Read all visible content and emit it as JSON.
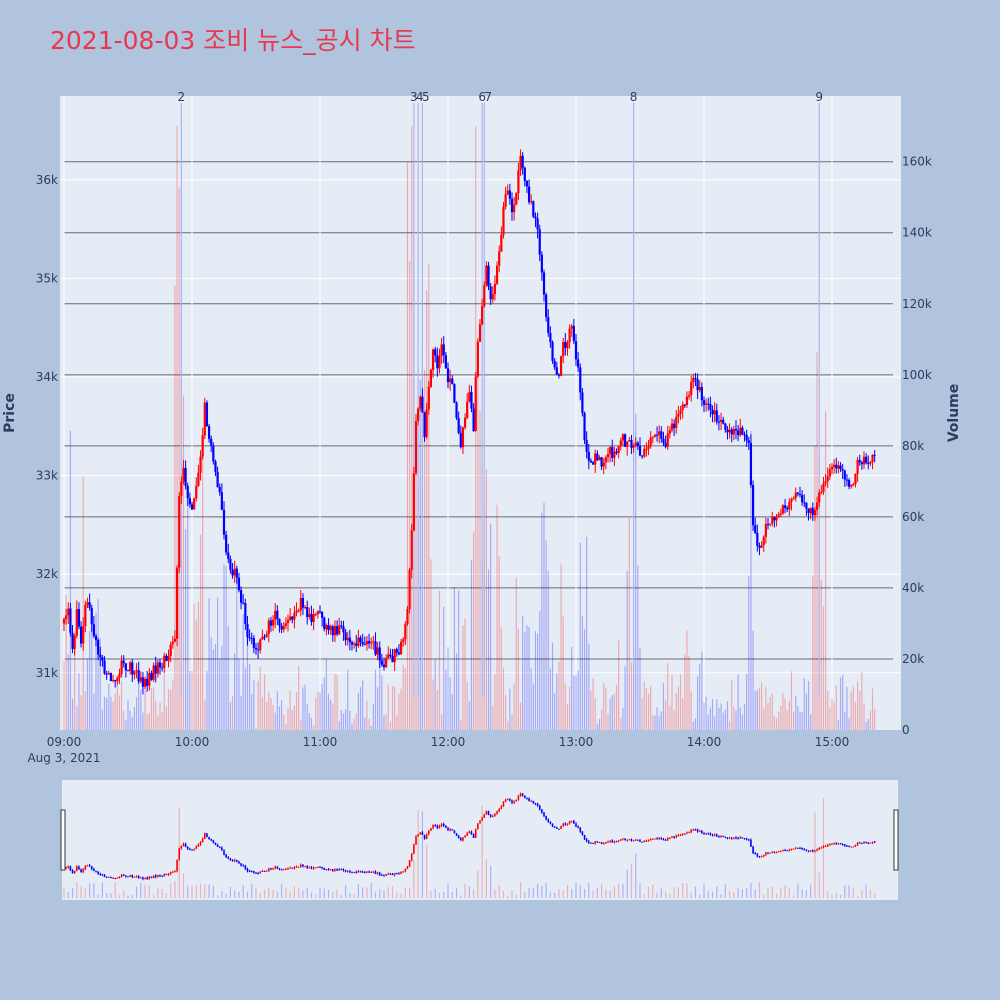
{
  "title": "2021-08-03 조비 뉴스_공시 차트",
  "chart_data": {
    "type": "candlestick",
    "title": "2021-08-03 조비 뉴스_공시 차트",
    "ylabel": "Price",
    "y2label": "Volume",
    "xdate_label": "Aug 3, 2021",
    "x_ticks": [
      "09:00",
      "10:00",
      "11:00",
      "12:00",
      "13:00",
      "14:00",
      "15:00"
    ],
    "x_range": [
      "09:00",
      "15:30"
    ],
    "y_ticks": [
      "31k",
      "32k",
      "33k",
      "34k",
      "35k",
      "36k"
    ],
    "y_tick_values": [
      31000,
      32000,
      33000,
      34000,
      35000,
      36000
    ],
    "ylim": [
      30420,
      36850
    ],
    "y2_ticks": [
      "0",
      "20k",
      "40k",
      "60k",
      "80k",
      "100k",
      "120k",
      "140k",
      "160k"
    ],
    "y2_tick_values": [
      0,
      20000,
      40000,
      60000,
      80000,
      100000,
      120000,
      140000,
      160000
    ],
    "y2lim": [
      0,
      178500
    ],
    "colors": {
      "up": "#ff0000",
      "down": "#0000ff",
      "news_line": "#aab4f0"
    },
    "price_path": [
      [
        "09:00",
        31500
      ],
      [
        "09:02",
        31700
      ],
      [
        "09:04",
        31200
      ],
      [
        "09:06",
        31600
      ],
      [
        "09:08",
        31300
      ],
      [
        "09:10",
        31750
      ],
      [
        "09:12",
        31600
      ],
      [
        "09:14",
        31400
      ],
      [
        "09:17",
        31100
      ],
      [
        "09:20",
        31000
      ],
      [
        "09:22",
        30900
      ],
      [
        "09:25",
        31000
      ],
      [
        "09:28",
        31100
      ],
      [
        "09:31",
        31050
      ],
      [
        "09:34",
        31000
      ],
      [
        "09:37",
        30880
      ],
      [
        "09:40",
        30950
      ],
      [
        "09:43",
        31050
      ],
      [
        "09:46",
        31100
      ],
      [
        "09:49",
        31200
      ],
      [
        "09:52",
        31350
      ],
      [
        "09:54",
        32800
      ],
      [
        "09:56",
        33100
      ],
      [
        "09:58",
        32800
      ],
      [
        "10:00",
        32700
      ],
      [
        "10:02",
        32900
      ],
      [
        "10:04",
        33200
      ],
      [
        "10:06",
        33700
      ],
      [
        "10:08",
        33400
      ],
      [
        "10:10",
        33100
      ],
      [
        "10:12",
        32900
      ],
      [
        "10:14",
        32700
      ],
      [
        "10:16",
        32200
      ],
      [
        "10:18",
        32000
      ],
      [
        "10:20",
        32050
      ],
      [
        "10:22",
        31800
      ],
      [
        "10:24",
        31700
      ],
      [
        "10:26",
        31400
      ],
      [
        "10:28",
        31300
      ],
      [
        "10:30",
        31200
      ],
      [
        "10:33",
        31350
      ],
      [
        "10:36",
        31500
      ],
      [
        "10:39",
        31600
      ],
      [
        "10:42",
        31450
      ],
      [
        "10:45",
        31500
      ],
      [
        "10:48",
        31600
      ],
      [
        "10:51",
        31700
      ],
      [
        "10:54",
        31600
      ],
      [
        "10:57",
        31550
      ],
      [
        "11:00",
        31600
      ],
      [
        "11:03",
        31450
      ],
      [
        "11:06",
        31400
      ],
      [
        "11:09",
        31450
      ],
      [
        "11:12",
        31380
      ],
      [
        "11:15",
        31300
      ],
      [
        "11:18",
        31350
      ],
      [
        "11:21",
        31250
      ],
      [
        "11:24",
        31300
      ],
      [
        "11:27",
        31200
      ],
      [
        "11:30",
        31100
      ],
      [
        "11:33",
        31150
      ],
      [
        "11:36",
        31200
      ],
      [
        "11:39",
        31300
      ],
      [
        "11:41",
        31650
      ],
      [
        "11:43",
        32500
      ],
      [
        "11:45",
        33500
      ],
      [
        "11:47",
        33800
      ],
      [
        "11:49",
        33400
      ],
      [
        "11:51",
        33900
      ],
      [
        "11:53",
        34300
      ],
      [
        "11:55",
        34050
      ],
      [
        "11:57",
        34300
      ],
      [
        "12:00",
        34000
      ],
      [
        "12:02",
        33900
      ],
      [
        "12:04",
        33600
      ],
      [
        "12:06",
        33300
      ],
      [
        "12:08",
        33600
      ],
      [
        "12:10",
        33800
      ],
      [
        "12:12",
        33500
      ],
      [
        "12:14",
        34400
      ],
      [
        "12:16",
        34700
      ],
      [
        "12:18",
        35100
      ],
      [
        "12:20",
        34800
      ],
      [
        "12:22",
        34900
      ],
      [
        "12:24",
        35300
      ],
      [
        "12:26",
        35700
      ],
      [
        "12:28",
        35900
      ],
      [
        "12:30",
        35700
      ],
      [
        "12:32",
        35900
      ],
      [
        "12:34",
        36200
      ],
      [
        "12:36",
        36000
      ],
      [
        "12:38",
        35800
      ],
      [
        "12:40",
        35650
      ],
      [
        "12:42",
        35500
      ],
      [
        "12:44",
        35100
      ],
      [
        "12:46",
        34600
      ],
      [
        "12:48",
        34300
      ],
      [
        "12:50",
        34100
      ],
      [
        "12:52",
        34000
      ],
      [
        "12:54",
        34300
      ],
      [
        "12:56",
        34400
      ],
      [
        "12:58",
        34500
      ],
      [
        "13:00",
        34200
      ],
      [
        "13:02",
        33900
      ],
      [
        "13:04",
        33400
      ],
      [
        "13:06",
        33100
      ],
      [
        "13:09",
        33200
      ],
      [
        "13:12",
        33150
      ],
      [
        "13:15",
        33250
      ],
      [
        "13:18",
        33200
      ],
      [
        "13:21",
        33400
      ],
      [
        "13:24",
        33300
      ],
      [
        "13:27",
        33350
      ],
      [
        "13:30",
        33200
      ],
      [
        "13:33",
        33300
      ],
      [
        "13:36",
        33450
      ],
      [
        "13:39",
        33400
      ],
      [
        "13:42",
        33350
      ],
      [
        "13:45",
        33500
      ],
      [
        "13:48",
        33600
      ],
      [
        "13:51",
        33700
      ],
      [
        "13:54",
        33950
      ],
      [
        "13:57",
        33900
      ],
      [
        "14:00",
        33750
      ],
      [
        "14:03",
        33700
      ],
      [
        "14:06",
        33600
      ],
      [
        "14:09",
        33500
      ],
      [
        "14:12",
        33450
      ],
      [
        "14:15",
        33500
      ],
      [
        "14:18",
        33400
      ],
      [
        "14:21",
        33300
      ],
      [
        "14:23",
        32500
      ],
      [
        "14:25",
        32300
      ],
      [
        "14:27",
        32350
      ],
      [
        "14:30",
        32500
      ],
      [
        "14:33",
        32600
      ],
      [
        "14:36",
        32650
      ],
      [
        "14:39",
        32700
      ],
      [
        "14:42",
        32800
      ],
      [
        "14:45",
        32750
      ],
      [
        "14:48",
        32700
      ],
      [
        "14:51",
        32600
      ],
      [
        "14:54",
        32800
      ],
      [
        "14:57",
        33000
      ],
      [
        "15:00",
        33050
      ],
      [
        "15:03",
        33100
      ],
      [
        "15:06",
        32950
      ],
      [
        "15:09",
        32900
      ],
      [
        "15:12",
        33100
      ],
      [
        "15:15",
        33200
      ],
      [
        "15:18",
        33150
      ],
      [
        "15:20",
        33250
      ]
    ],
    "news_events": [
      {
        "label": "2",
        "time": "09:55"
      },
      {
        "label": "3",
        "time": "11:44"
      },
      {
        "label": "4",
        "time": "11:46"
      },
      {
        "label": "5",
        "time": "11:48"
      },
      {
        "label": "6",
        "time": "12:16"
      },
      {
        "label": "7",
        "time": "12:17"
      },
      {
        "label": "8",
        "time": "13:27"
      },
      {
        "label": "9",
        "time": "14:54"
      }
    ],
    "grid": true,
    "range_slider": true
  }
}
